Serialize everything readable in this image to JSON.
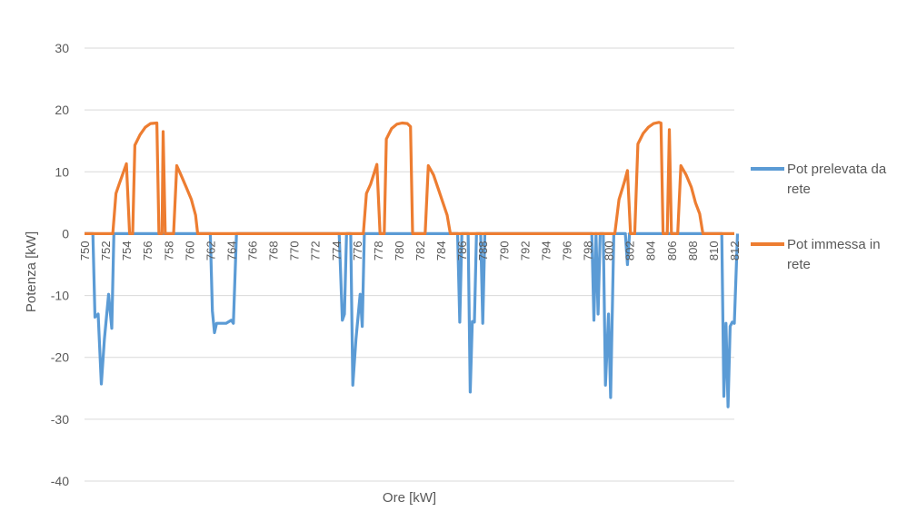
{
  "chart_data": {
    "type": "line",
    "title": "",
    "xlabel": "Ore [kW]",
    "ylabel": "Potenza [kW]",
    "ylim": [
      -40,
      30
    ],
    "yticks": [
      -40,
      -30,
      -20,
      -10,
      0,
      10,
      20,
      30
    ],
    "xlim": [
      750,
      812
    ],
    "xticks": [
      750,
      752,
      754,
      756,
      758,
      760,
      762,
      764,
      766,
      768,
      770,
      772,
      774,
      776,
      778,
      780,
      782,
      784,
      786,
      788,
      790,
      792,
      794,
      796,
      798,
      800,
      802,
      804,
      806,
      808,
      810,
      812
    ],
    "grid": "horizontal",
    "legend_position": "right",
    "series": [
      {
        "name": "Pot prelevata da rete",
        "color": "#5B9BD5",
        "points": [
          [
            750,
            0
          ],
          [
            750.8,
            0
          ],
          [
            751,
            -13.5
          ],
          [
            751.3,
            -13
          ],
          [
            751.6,
            -24.3
          ],
          [
            751.9,
            -17
          ],
          [
            752.3,
            -9.8
          ],
          [
            752.6,
            -15.3
          ],
          [
            752.8,
            0
          ],
          [
            762,
            0
          ],
          [
            762.2,
            -12.5
          ],
          [
            762.4,
            -16
          ],
          [
            762.6,
            -14.5
          ],
          [
            763.5,
            -14.5
          ],
          [
            764,
            -14
          ],
          [
            764.2,
            -14.5
          ],
          [
            764.5,
            0
          ],
          [
            774.3,
            0
          ],
          [
            774.6,
            -14
          ],
          [
            774.8,
            -13
          ],
          [
            775,
            0
          ],
          [
            775.4,
            0
          ],
          [
            775.6,
            -24.5
          ],
          [
            775.9,
            -17
          ],
          [
            776.3,
            -9.8
          ],
          [
            776.5,
            -15
          ],
          [
            776.7,
            0
          ],
          [
            785.6,
            0
          ],
          [
            785.8,
            -14.3
          ],
          [
            786,
            0
          ],
          [
            786.6,
            0
          ],
          [
            786.8,
            -25.6
          ],
          [
            787,
            -14.2
          ],
          [
            787.2,
            -14.3
          ],
          [
            787.4,
            0
          ],
          [
            787.8,
            0
          ],
          [
            788,
            -14.5
          ],
          [
            788.2,
            0
          ],
          [
            798.4,
            0
          ],
          [
            798.6,
            -14
          ],
          [
            798.8,
            0
          ],
          [
            799,
            -13
          ],
          [
            799.2,
            0
          ],
          [
            799.5,
            0
          ],
          [
            799.7,
            -24.5
          ],
          [
            800,
            -13
          ],
          [
            800.2,
            -26.5
          ],
          [
            800.5,
            0
          ],
          [
            801.6,
            0
          ],
          [
            801.8,
            -5
          ],
          [
            802,
            0
          ],
          [
            810.8,
            0
          ],
          [
            811,
            -26.3
          ],
          [
            811.2,
            -14.5
          ],
          [
            811.4,
            -28
          ],
          [
            811.6,
            -15
          ],
          [
            811.8,
            -14.3
          ],
          [
            812,
            -14.5
          ],
          [
            812.3,
            0
          ]
        ]
      },
      {
        "name": "Pot immessa in rete",
        "color": "#ED7D31",
        "points": [
          [
            750,
            0
          ],
          [
            752.7,
            0
          ],
          [
            753,
            6.5
          ],
          [
            753.3,
            8
          ],
          [
            754,
            11.3
          ],
          [
            754.3,
            0
          ],
          [
            754.6,
            0
          ],
          [
            754.8,
            14.3
          ],
          [
            755.3,
            16
          ],
          [
            755.8,
            17.2
          ],
          [
            756.3,
            17.8
          ],
          [
            756.9,
            17.9
          ],
          [
            757.1,
            0
          ],
          [
            757.4,
            0
          ],
          [
            757.5,
            16.5
          ],
          [
            757.7,
            0
          ],
          [
            758.5,
            0
          ],
          [
            758.8,
            11
          ],
          [
            759.2,
            9.5
          ],
          [
            759.7,
            7.5
          ],
          [
            760.2,
            5.5
          ],
          [
            760.6,
            3
          ],
          [
            760.8,
            0
          ],
          [
            776.6,
            0
          ],
          [
            776.9,
            6.5
          ],
          [
            777.3,
            8
          ],
          [
            777.9,
            11.2
          ],
          [
            778.2,
            0
          ],
          [
            778.6,
            0
          ],
          [
            778.8,
            15.3
          ],
          [
            779.3,
            17
          ],
          [
            779.8,
            17.7
          ],
          [
            780.3,
            17.9
          ],
          [
            780.8,
            17.8
          ],
          [
            781.1,
            17.3
          ],
          [
            781.3,
            0
          ],
          [
            782.5,
            0
          ],
          [
            782.8,
            11
          ],
          [
            783.3,
            9.5
          ],
          [
            783.8,
            7
          ],
          [
            784.2,
            5
          ],
          [
            784.6,
            3
          ],
          [
            784.9,
            0
          ],
          [
            800.6,
            0
          ],
          [
            801,
            5.5
          ],
          [
            801.5,
            8.3
          ],
          [
            801.8,
            10.2
          ],
          [
            802.1,
            0
          ],
          [
            802.5,
            0
          ],
          [
            802.8,
            14.5
          ],
          [
            803.3,
            16.2
          ],
          [
            803.8,
            17.2
          ],
          [
            804.3,
            17.8
          ],
          [
            804.8,
            18
          ],
          [
            805,
            17.9
          ],
          [
            805.2,
            0
          ],
          [
            805.6,
            0
          ],
          [
            805.8,
            16.8
          ],
          [
            806,
            0
          ],
          [
            806.6,
            0
          ],
          [
            806.9,
            11
          ],
          [
            807.4,
            9.5
          ],
          [
            807.9,
            7.5
          ],
          [
            808.3,
            5
          ],
          [
            808.7,
            3.2
          ],
          [
            809,
            0
          ],
          [
            812,
            0
          ]
        ]
      }
    ]
  }
}
